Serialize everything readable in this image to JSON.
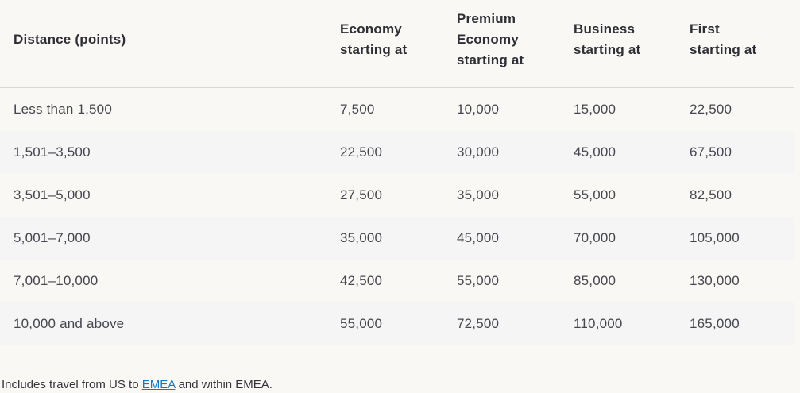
{
  "award_table": {
    "columns": [
      {
        "id": "distance",
        "lines": [
          "Distance (points)"
        ]
      },
      {
        "id": "economy",
        "lines": [
          "Economy",
          "starting at"
        ]
      },
      {
        "id": "premium-economy",
        "lines": [
          "Premium",
          "Economy",
          "starting at"
        ]
      },
      {
        "id": "business",
        "lines": [
          "Business",
          "starting at"
        ]
      },
      {
        "id": "first",
        "lines": [
          "First",
          "starting at"
        ]
      }
    ],
    "rows": [
      {
        "distance": "Less than 1,500",
        "economy": "7,500",
        "premium_economy": "10,000",
        "business": "15,000",
        "first": "22,500"
      },
      {
        "distance": "1,501–3,500",
        "economy": "22,500",
        "premium_economy": "30,000",
        "business": "45,000",
        "first": "67,500"
      },
      {
        "distance": "3,501–5,000",
        "economy": "27,500",
        "premium_economy": "35,000",
        "business": "55,000",
        "first": "82,500"
      },
      {
        "distance": "5,001–7,000",
        "economy": "35,000",
        "premium_economy": "45,000",
        "business": "70,000",
        "first": "105,000"
      },
      {
        "distance": "7,001–10,000",
        "economy": "42,500",
        "premium_economy": "55,000",
        "business": "85,000",
        "first": "130,000"
      },
      {
        "distance": "10,000 and above",
        "economy": "55,000",
        "premium_economy": "72,500",
        "business": "110,000",
        "first": "165,000"
      }
    ]
  },
  "footnote": {
    "prefix": "Includes travel from US to ",
    "link_text": "EMEA",
    "suffix": " and within EMEA."
  },
  "colors": {
    "background": "#faf8f5",
    "row_stripe": "#f5f5f6",
    "divider": "#d8d7d4",
    "header_text": "#2d2f35",
    "body_text": "#45474e",
    "footnote_text": "#33353b",
    "link": "#1779c2"
  }
}
